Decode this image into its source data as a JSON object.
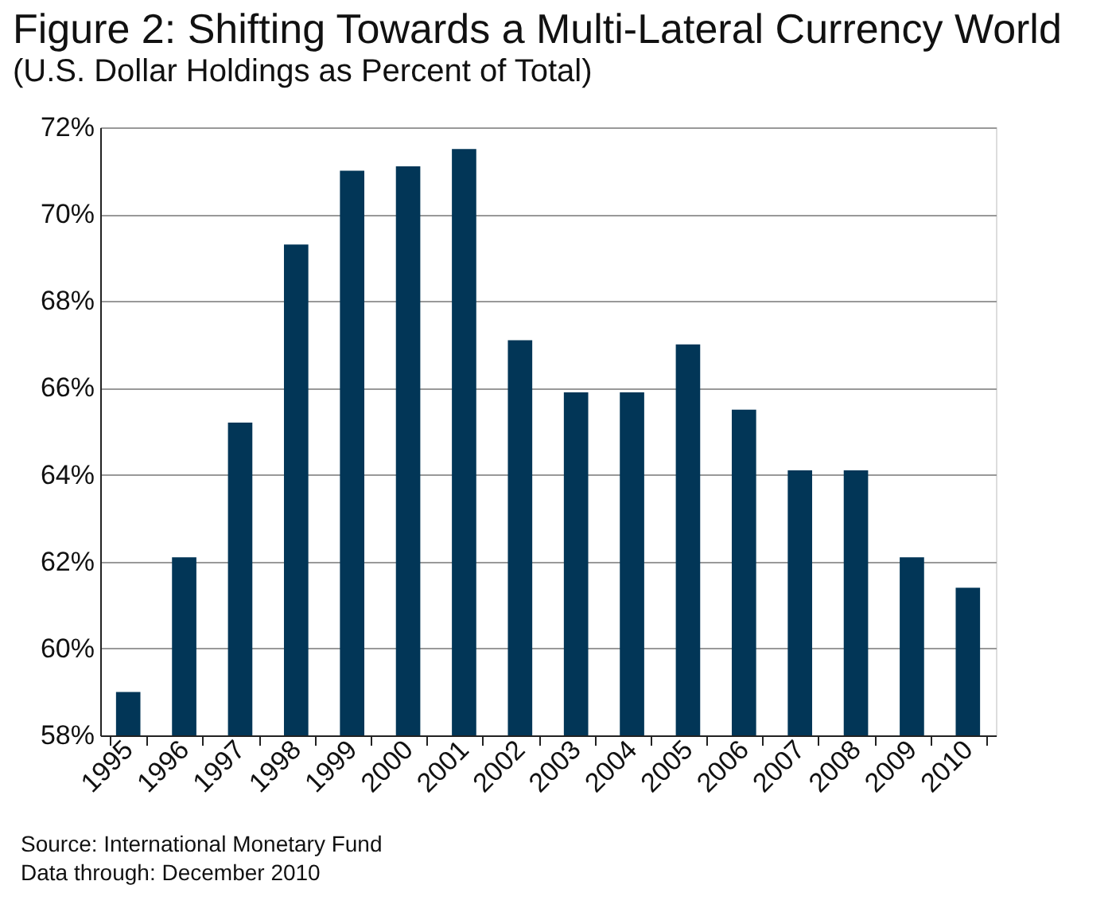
{
  "chart_data": {
    "type": "bar",
    "title": "Figure 2: Shifting Towards a Multi-Lateral Currency World",
    "subtitle": "(U.S. Dollar Holdings as Percent of Total)",
    "categories": [
      "1995",
      "1996",
      "1997",
      "1998",
      "1999",
      "2000",
      "2001",
      "2002",
      "2003",
      "2004",
      "2005",
      "2006",
      "2007",
      "2008",
      "2009",
      "2010"
    ],
    "values": [
      59.0,
      62.1,
      65.2,
      69.3,
      71.0,
      71.1,
      71.5,
      67.1,
      65.9,
      65.9,
      67.0,
      65.5,
      64.1,
      64.1,
      62.1,
      61.4
    ],
    "color": "#023657",
    "ylim": [
      58,
      72
    ],
    "yticks": [
      {
        "value": 58,
        "label": "58%"
      },
      {
        "value": 60,
        "label": "60%"
      },
      {
        "value": 62,
        "label": "62%"
      },
      {
        "value": 64,
        "label": "64%"
      },
      {
        "value": 66,
        "label": "66%"
      },
      {
        "value": 68,
        "label": "68%"
      },
      {
        "value": 70,
        "label": "70%"
      },
      {
        "value": 72,
        "label": "72%"
      }
    ],
    "grid": "y",
    "annotations": [
      "Source: International Monetary Fund",
      "Data through: December 2010"
    ]
  }
}
